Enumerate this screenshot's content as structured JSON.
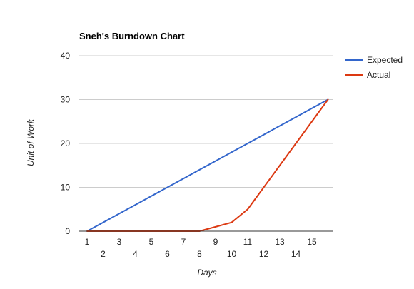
{
  "chart_data": {
    "type": "line",
    "title": "Sneh's Burndown Chart",
    "xlabel": "Days",
    "ylabel": "Unit of Work",
    "x": [
      1,
      2,
      3,
      4,
      5,
      6,
      7,
      8,
      9,
      10,
      11,
      12,
      13,
      14,
      15,
      16
    ],
    "x_tick_labels": [
      "1",
      "2",
      "3",
      "4",
      "5",
      "6",
      "7",
      "8",
      "9",
      "10",
      "11",
      "12",
      "13",
      "14",
      "15"
    ],
    "ylim": [
      0,
      40
    ],
    "y_ticks": [
      0,
      10,
      20,
      30,
      40
    ],
    "grid": true,
    "legend_position": "right",
    "series": [
      {
        "name": "Expected",
        "color": "#3366cc",
        "values": [
          0,
          2,
          4,
          6,
          8,
          10,
          12,
          14,
          16,
          18,
          20,
          22,
          24,
          26,
          28,
          30
        ]
      },
      {
        "name": "Actual",
        "color": "#dc3912",
        "values": [
          0,
          0,
          0,
          0,
          0,
          0,
          0,
          0,
          1,
          2,
          5,
          10,
          15,
          20,
          25,
          30
        ]
      }
    ]
  }
}
